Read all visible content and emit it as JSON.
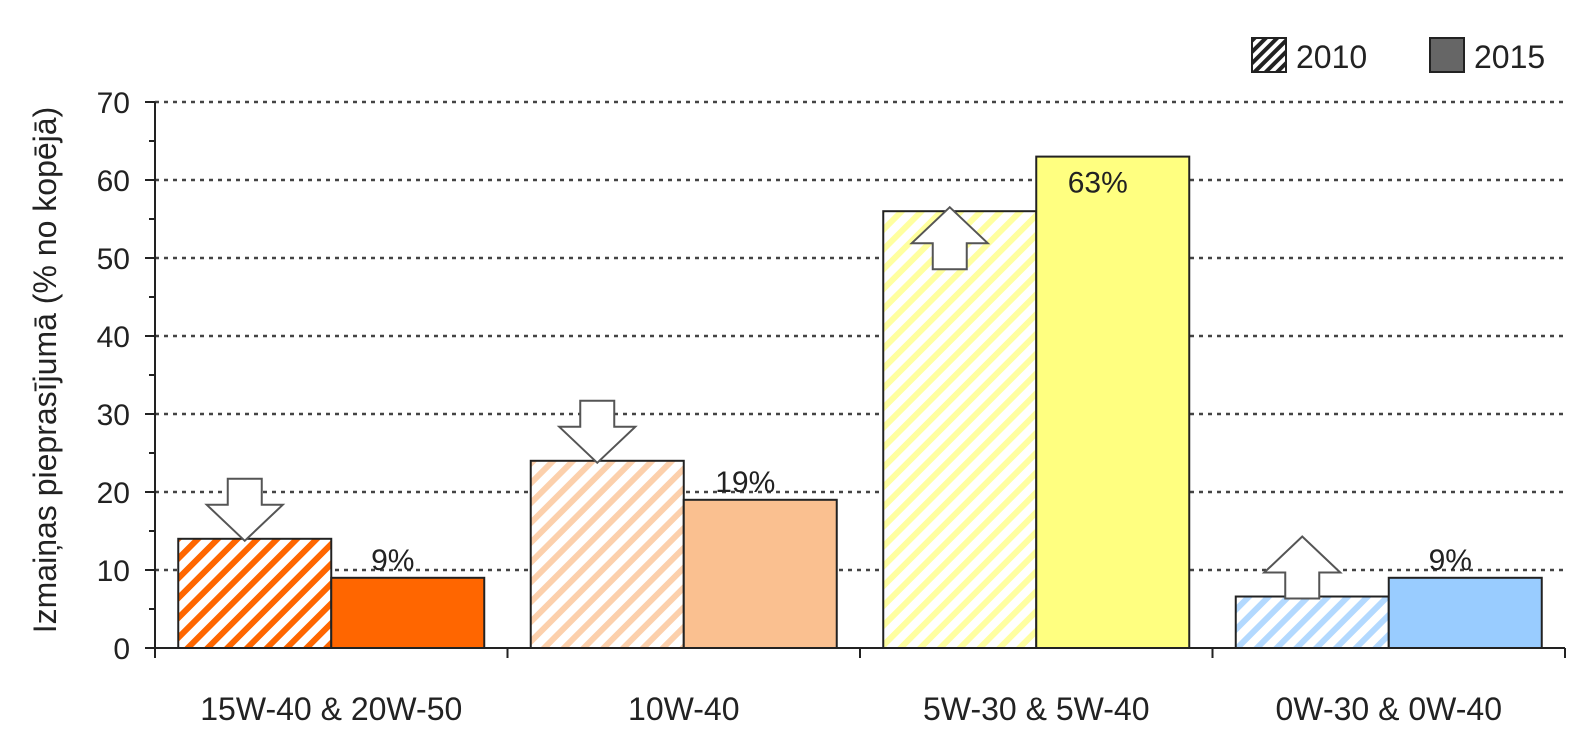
{
  "chart_data": {
    "type": "bar",
    "title": "",
    "xlabel": "",
    "ylabel": "Izmaiņas pieprasījumā (% no kopējā)",
    "ylim": [
      0,
      70
    ],
    "yticks": [
      0,
      10,
      20,
      30,
      40,
      50,
      60,
      70
    ],
    "grid": "dotted horizontal",
    "legend_position": "top-right",
    "categories": [
      "15W-40 & 20W-50",
      "10W-40",
      "5W-30 & 5W-40",
      "0W-30 & 0W-40"
    ],
    "category_colors": [
      "#ff6600",
      "#fac090",
      "#ffff80",
      "#99ccff"
    ],
    "series": [
      {
        "name": "2010",
        "pattern": "hatched",
        "values": [
          14,
          24,
          56,
          6.6
        ]
      },
      {
        "name": "2015",
        "pattern": "solid",
        "values": [
          9,
          19,
          63,
          9
        ]
      }
    ],
    "data_labels": [
      "9%",
      "19%",
      "63%",
      "9%"
    ],
    "arrows": [
      "down",
      "down",
      "up",
      "up"
    ]
  }
}
